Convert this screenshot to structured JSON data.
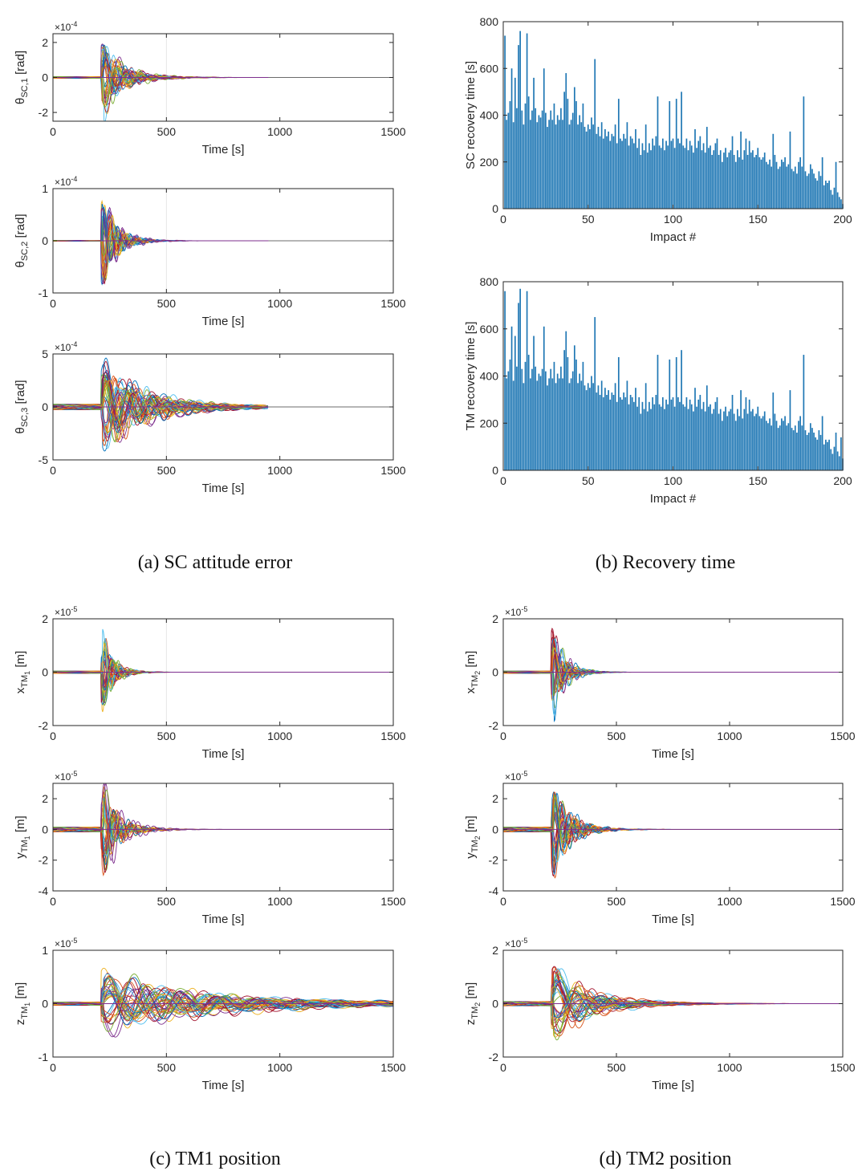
{
  "captions": {
    "a": "(a) SC attitude error",
    "b": "(b) Recovery time",
    "c": "(c) TM1 position",
    "d": "(d) TM2 position"
  },
  "chart_data": [
    {
      "id": "sc1",
      "type": "line",
      "panel": "a",
      "ylabel": "θSC,1 [rad]",
      "xlabel": "Time [s]",
      "xlim": [
        0,
        1500
      ],
      "xticks": [
        0,
        500,
        1000,
        1500
      ],
      "ylim": [
        -2.5,
        2.5
      ],
      "yticks": [
        -2,
        0,
        2
      ],
      "exponent": "×10-4",
      "impact_time": 210,
      "peak": 2.4,
      "decay": 80,
      "period": 85,
      "flat_until": 950,
      "pre_amp": 0.02,
      "grid": "vertical-500"
    },
    {
      "id": "sc2",
      "type": "line",
      "panel": "a",
      "ylabel": "θSC,2 [rad]",
      "xlabel": "Time [s]",
      "xlim": [
        0,
        1500
      ],
      "xticks": [
        0,
        500,
        1000,
        1500
      ],
      "ylim": [
        -1,
        1
      ],
      "yticks": [
        -1,
        0,
        1
      ],
      "exponent": "×10-4",
      "impact_time": 210,
      "peak": 0.95,
      "decay": 55,
      "period": 55,
      "flat_until": 950,
      "pre_amp": 0.01,
      "grid": "vertical-500"
    },
    {
      "id": "sc3",
      "type": "line",
      "panel": "a",
      "ylabel": "θSC,3 [rad]",
      "xlabel": "Time [s]",
      "xlim": [
        0,
        1500
      ],
      "xticks": [
        0,
        500,
        1000,
        1500
      ],
      "ylim": [
        -5,
        5
      ],
      "yticks": [
        -5,
        0,
        5
      ],
      "exponent": "×10-4",
      "impact_time": 210,
      "peak": 4.3,
      "decay": 160,
      "period": 110,
      "flat_until": 950,
      "pre_amp": 0.05,
      "grid": "vertical-500"
    },
    {
      "id": "rec_sc",
      "type": "bar",
      "panel": "b",
      "ylabel": "SC recovery time [s]",
      "xlabel": "Impact #",
      "xlim": [
        0,
        200
      ],
      "xticks": [
        0,
        50,
        100,
        150,
        200
      ],
      "ylim": [
        0,
        800
      ],
      "yticks": [
        0,
        200,
        400,
        600,
        800
      ],
      "values": [
        740,
        380,
        410,
        460,
        600,
        370,
        560,
        430,
        700,
        760,
        420,
        360,
        450,
        750,
        480,
        380,
        420,
        560,
        430,
        370,
        400,
        390,
        420,
        600,
        410,
        350,
        380,
        420,
        380,
        450,
        360,
        400,
        380,
        430,
        380,
        500,
        580,
        470,
        360,
        380,
        410,
        520,
        460,
        360,
        400,
        370,
        450,
        350,
        330,
        360,
        340,
        390,
        360,
        640,
        320,
        350,
        310,
        370,
        300,
        340,
        310,
        330,
        290,
        320,
        310,
        360,
        280,
        470,
        300,
        290,
        320,
        300,
        370,
        270,
        310,
        300,
        280,
        340,
        260,
        300,
        230,
        280,
        250,
        360,
        240,
        280,
        250,
        300,
        270,
        310,
        480,
        270,
        260,
        300,
        250,
        290,
        270,
        460,
        290,
        300,
        260,
        470,
        300,
        280,
        500,
        270,
        260,
        300,
        250,
        290,
        270,
        240,
        340,
        260,
        290,
        310,
        250,
        280,
        240,
        350,
        260,
        270,
        230,
        250,
        280,
        300,
        230,
        250,
        200,
        240,
        260,
        220,
        240,
        250,
        310,
        230,
        200,
        250,
        220,
        330,
        210,
        250,
        300,
        230,
        290,
        240,
        250,
        220,
        230,
        260,
        220,
        210,
        220,
        240,
        200,
        190,
        210,
        180,
        320,
        230,
        200,
        170,
        180,
        210,
        200,
        220,
        180,
        190,
        330,
        170,
        160,
        180,
        150,
        200,
        220,
        180,
        480,
        160,
        140,
        150,
        190,
        170,
        150,
        130,
        120,
        160,
        140,
        220,
        100,
        120,
        110,
        120,
        80,
        60,
        90,
        200,
        70,
        50,
        40,
        20
      ]
    },
    {
      "id": "rec_tm",
      "type": "bar",
      "panel": "b",
      "ylabel": "TM recovery time [s]",
      "xlabel": "Impact #",
      "xlim": [
        0,
        200
      ],
      "xticks": [
        0,
        50,
        100,
        150,
        200
      ],
      "ylim": [
        0,
        800
      ],
      "yticks": [
        0,
        200,
        400,
        600,
        800
      ],
      "values": [
        760,
        390,
        420,
        470,
        610,
        380,
        570,
        440,
        710,
        770,
        430,
        370,
        460,
        760,
        490,
        390,
        430,
        570,
        440,
        380,
        410,
        400,
        430,
        610,
        420,
        360,
        390,
        430,
        390,
        460,
        370,
        410,
        390,
        440,
        390,
        510,
        590,
        480,
        370,
        390,
        420,
        530,
        470,
        370,
        410,
        380,
        460,
        360,
        340,
        370,
        350,
        400,
        370,
        650,
        330,
        360,
        320,
        380,
        310,
        350,
        320,
        340,
        300,
        330,
        320,
        370,
        290,
        480,
        310,
        300,
        330,
        310,
        380,
        280,
        320,
        310,
        290,
        350,
        270,
        310,
        240,
        290,
        260,
        370,
        250,
        290,
        260,
        310,
        280,
        320,
        490,
        280,
        270,
        310,
        260,
        300,
        280,
        470,
        300,
        310,
        270,
        480,
        310,
        290,
        510,
        280,
        270,
        310,
        260,
        300,
        280,
        250,
        350,
        270,
        300,
        320,
        260,
        290,
        250,
        360,
        270,
        280,
        240,
        260,
        290,
        310,
        240,
        260,
        210,
        250,
        270,
        230,
        250,
        260,
        320,
        240,
        210,
        260,
        230,
        340,
        220,
        260,
        310,
        240,
        300,
        250,
        260,
        230,
        240,
        270,
        230,
        220,
        230,
        250,
        210,
        200,
        220,
        190,
        330,
        240,
        210,
        180,
        190,
        220,
        210,
        230,
        190,
        200,
        340,
        180,
        170,
        190,
        160,
        210,
        230,
        190,
        490,
        170,
        150,
        160,
        200,
        180,
        160,
        140,
        130,
        170,
        150,
        230,
        110,
        130,
        120,
        130,
        90,
        70,
        100,
        160,
        80,
        60,
        140,
        50
      ]
    },
    {
      "id": "tm1x",
      "type": "line",
      "panel": "c",
      "ylabel": "xTM1 [m]",
      "xlabel": "Time [s]",
      "xlim": [
        0,
        1500
      ],
      "xticks": [
        0,
        500,
        1000,
        1500
      ],
      "ylim": [
        -2,
        2
      ],
      "yticks": [
        -2,
        0,
        2
      ],
      "exponent": "×10-5",
      "impact_time": 210,
      "peak": 1.7,
      "decay": 40,
      "period": 60,
      "flat_until": 1500,
      "pre_amp": 0.02,
      "grid": "vertical-500"
    },
    {
      "id": "tm1y",
      "type": "line",
      "panel": "c",
      "ylabel": "yTM1 [m]",
      "xlabel": "Time [s]",
      "xlim": [
        0,
        1500
      ],
      "xticks": [
        0,
        500,
        1000,
        1500
      ],
      "ylim": [
        -4,
        3
      ],
      "yticks": [
        -4,
        -2,
        0,
        2
      ],
      "exponent": "×10-5",
      "impact_time": 210,
      "peak": 3.4,
      "decay": 60,
      "period": 70,
      "flat_until": 1500,
      "pre_amp": 0.05,
      "grid": "vertical-500"
    },
    {
      "id": "tm1z",
      "type": "line",
      "panel": "c",
      "ylabel": "zTM1 [m]",
      "xlabel": "Time [s]",
      "xlim": [
        0,
        1500
      ],
      "xticks": [
        0,
        500,
        1000,
        1500
      ],
      "ylim": [
        -1,
        1
      ],
      "yticks": [
        -1,
        0,
        1
      ],
      "exponent": "×10-5",
      "impact_time": 210,
      "peak": 0.6,
      "decay": 420,
      "period": 190,
      "flat_until": 1500,
      "pre_amp": 0.03,
      "grid": "vertical-500"
    },
    {
      "id": "tm2x",
      "type": "line",
      "panel": "d",
      "ylabel": "xTM2 [m]",
      "xlabel": "Time [s]",
      "xlim": [
        0,
        1500
      ],
      "xticks": [
        0,
        500,
        1000,
        1500
      ],
      "ylim": [
        -2,
        2
      ],
      "yticks": [
        -2,
        0,
        2
      ],
      "exponent": "×10-5",
      "impact_time": 210,
      "peak": 1.9,
      "decay": 45,
      "period": 60,
      "flat_until": 1500,
      "pre_amp": 0.02,
      "grid": "none"
    },
    {
      "id": "tm2y",
      "type": "line",
      "panel": "d",
      "ylabel": "yTM2 [m]",
      "xlabel": "Time [s]",
      "xlim": [
        0,
        1500
      ],
      "xticks": [
        0,
        500,
        1000,
        1500
      ],
      "ylim": [
        -4,
        3
      ],
      "yticks": [
        -4,
        -2,
        0,
        2
      ],
      "exponent": "×10-5",
      "impact_time": 210,
      "peak": 3.4,
      "decay": 60,
      "period": 70,
      "flat_until": 1500,
      "pre_amp": 0.05,
      "grid": "none"
    },
    {
      "id": "tm2z",
      "type": "line",
      "panel": "d",
      "ylabel": "zTM2 [m]",
      "xlabel": "Time [s]",
      "xlim": [
        0,
        1500
      ],
      "xticks": [
        0,
        500,
        1000,
        1500
      ],
      "ylim": [
        -2,
        2
      ],
      "yticks": [
        -2,
        0,
        2
      ],
      "exponent": "×10-5",
      "impact_time": 210,
      "peak": 1.6,
      "decay": 140,
      "period": 170,
      "flat_until": 1500,
      "pre_amp": 0.04,
      "grid": "none"
    }
  ],
  "series_colors": [
    "#0072BD",
    "#D95319",
    "#EDB120",
    "#7E2F8E",
    "#77AC30",
    "#4DBEEE",
    "#A2142F"
  ],
  "bar_color": "#1f77b4"
}
